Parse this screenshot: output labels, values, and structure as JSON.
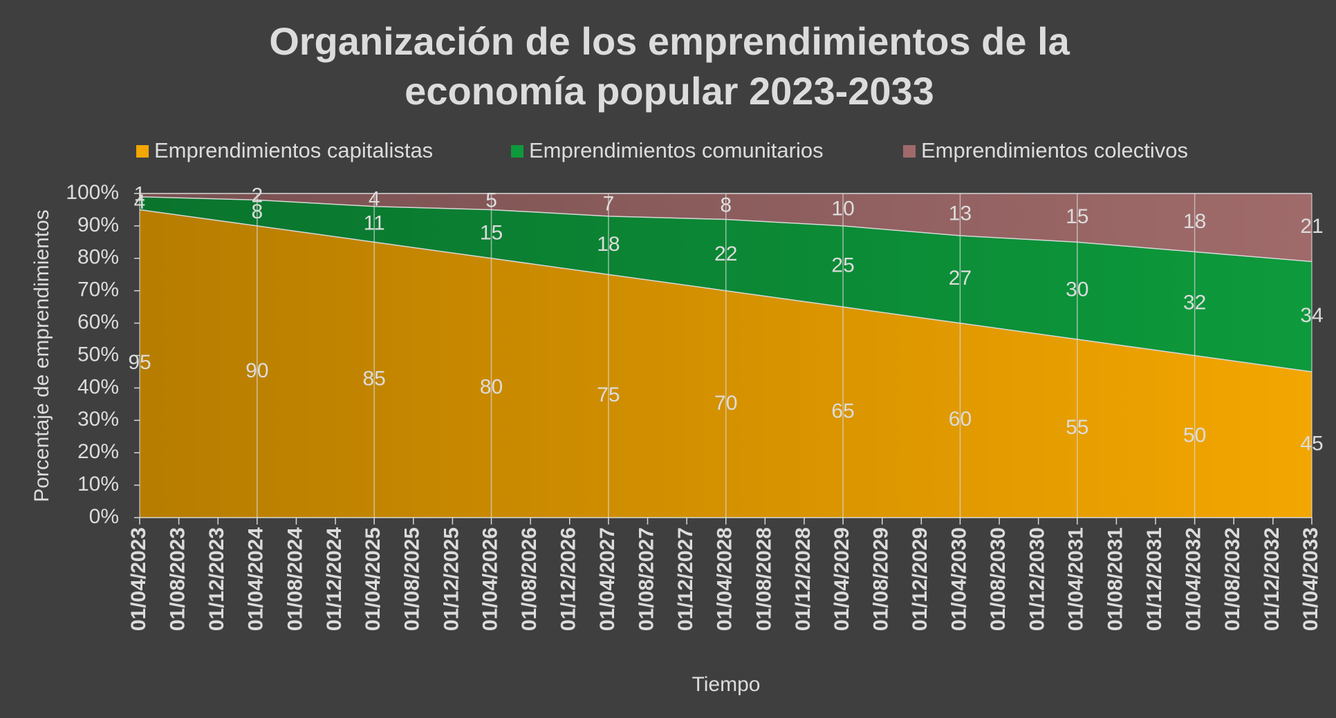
{
  "chart_data": {
    "type": "stacked_area",
    "title": [
      "Organización de los emprendimientos de la",
      "economía popular 2023-2033"
    ],
    "x_label": "Tiempo",
    "y_label": "Porcentaje de emprendimientos",
    "x": [
      "01/04/2023",
      "01/04/2024",
      "01/04/2025",
      "01/04/2026",
      "01/04/2027",
      "01/04/2028",
      "01/04/2029",
      "01/04/2030",
      "01/04/2031",
      "01/04/2032",
      "01/04/2033"
    ],
    "xlim": [
      "01/04/2023",
      "01/04/2033"
    ],
    "xticks": [
      "01/04/2023",
      "01/08/2023",
      "01/12/2023",
      "01/04/2024",
      "01/08/2024",
      "01/12/2024",
      "01/04/2025",
      "01/08/2025",
      "01/12/2025",
      "01/04/2026",
      "01/08/2026",
      "01/12/2026",
      "01/04/2027",
      "01/08/2027",
      "01/12/2027",
      "01/04/2028",
      "01/08/2028",
      "01/12/2028",
      "01/04/2029",
      "01/08/2029",
      "01/12/2029",
      "01/04/2030",
      "01/08/2030",
      "01/12/2030",
      "01/04/2031",
      "01/08/2031",
      "01/12/2031",
      "01/04/2032",
      "01/08/2032",
      "01/12/2032",
      "01/04/2033"
    ],
    "ylim": [
      0,
      100
    ],
    "yticks": [
      {
        "value": 0,
        "label": "0%"
      },
      {
        "value": 10,
        "label": "10%"
      },
      {
        "value": 20,
        "label": "20%"
      },
      {
        "value": 30,
        "label": "30%"
      },
      {
        "value": 40,
        "label": "40%"
      },
      {
        "value": 50,
        "label": "50%"
      },
      {
        "value": 60,
        "label": "60%"
      },
      {
        "value": 70,
        "label": "70%"
      },
      {
        "value": 80,
        "label": "80%"
      },
      {
        "value": 90,
        "label": "90%"
      },
      {
        "value": 100,
        "label": "100%"
      }
    ],
    "legend": "top",
    "series": [
      {
        "name": "Emprendimientos capitalistas",
        "color": "#f3a600",
        "values": [
          95,
          90,
          85,
          80,
          75,
          70,
          65,
          60,
          55,
          50,
          45
        ]
      },
      {
        "name": "Emprendimientos comunitarios",
        "color": "#0d9a3c",
        "values": [
          4,
          8,
          11,
          15,
          18,
          22,
          25,
          27,
          30,
          32,
          34
        ]
      },
      {
        "name": "Emprendimientos colectivos",
        "color": "#a06a6a",
        "values": [
          1,
          2,
          4,
          5,
          7,
          8,
          10,
          13,
          15,
          18,
          21
        ]
      }
    ]
  }
}
